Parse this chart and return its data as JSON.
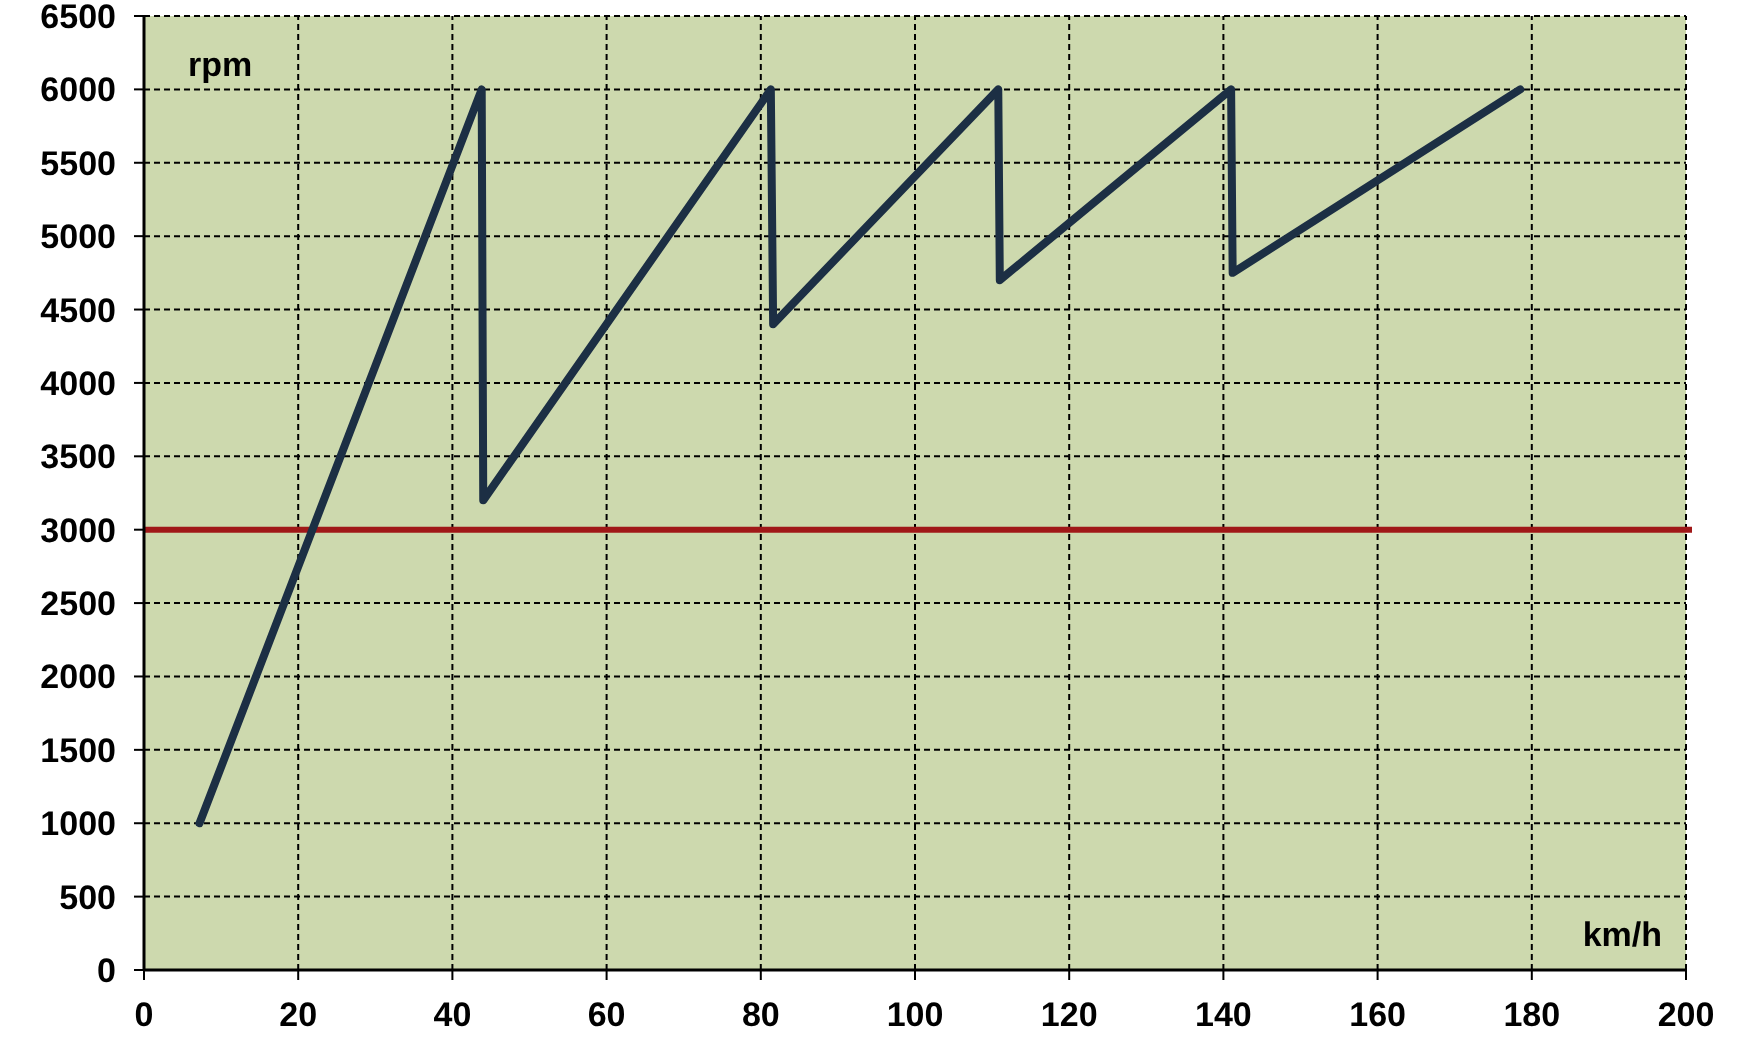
{
  "chart_data": {
    "type": "line",
    "xlabel": "km/h",
    "ylabel": "rpm",
    "x": [
      7.2,
      43.8,
      44,
      81.3,
      81.6,
      110.8,
      111,
      141,
      141.2,
      178.5
    ],
    "series": [
      {
        "color": "#1c2f44",
        "values": [
          1000,
          6000,
          3200,
          6000,
          4400,
          6000,
          4700,
          6000,
          4750,
          6000
        ]
      }
    ],
    "xlim": [
      0,
      200
    ],
    "xticks": [
      0,
      20,
      40,
      60,
      80,
      100,
      120,
      140,
      160,
      180,
      200
    ],
    "ylim": [
      0,
      6500
    ],
    "yticks": [
      0,
      500,
      1000,
      1500,
      2000,
      2500,
      3000,
      3500,
      4000,
      4500,
      5000,
      5500,
      6000,
      6500
    ],
    "ref_lines": [
      {
        "axis": "y",
        "value": 3000,
        "color": "#a01818"
      }
    ],
    "grid": true,
    "marker": "none",
    "line_style": "solid"
  }
}
